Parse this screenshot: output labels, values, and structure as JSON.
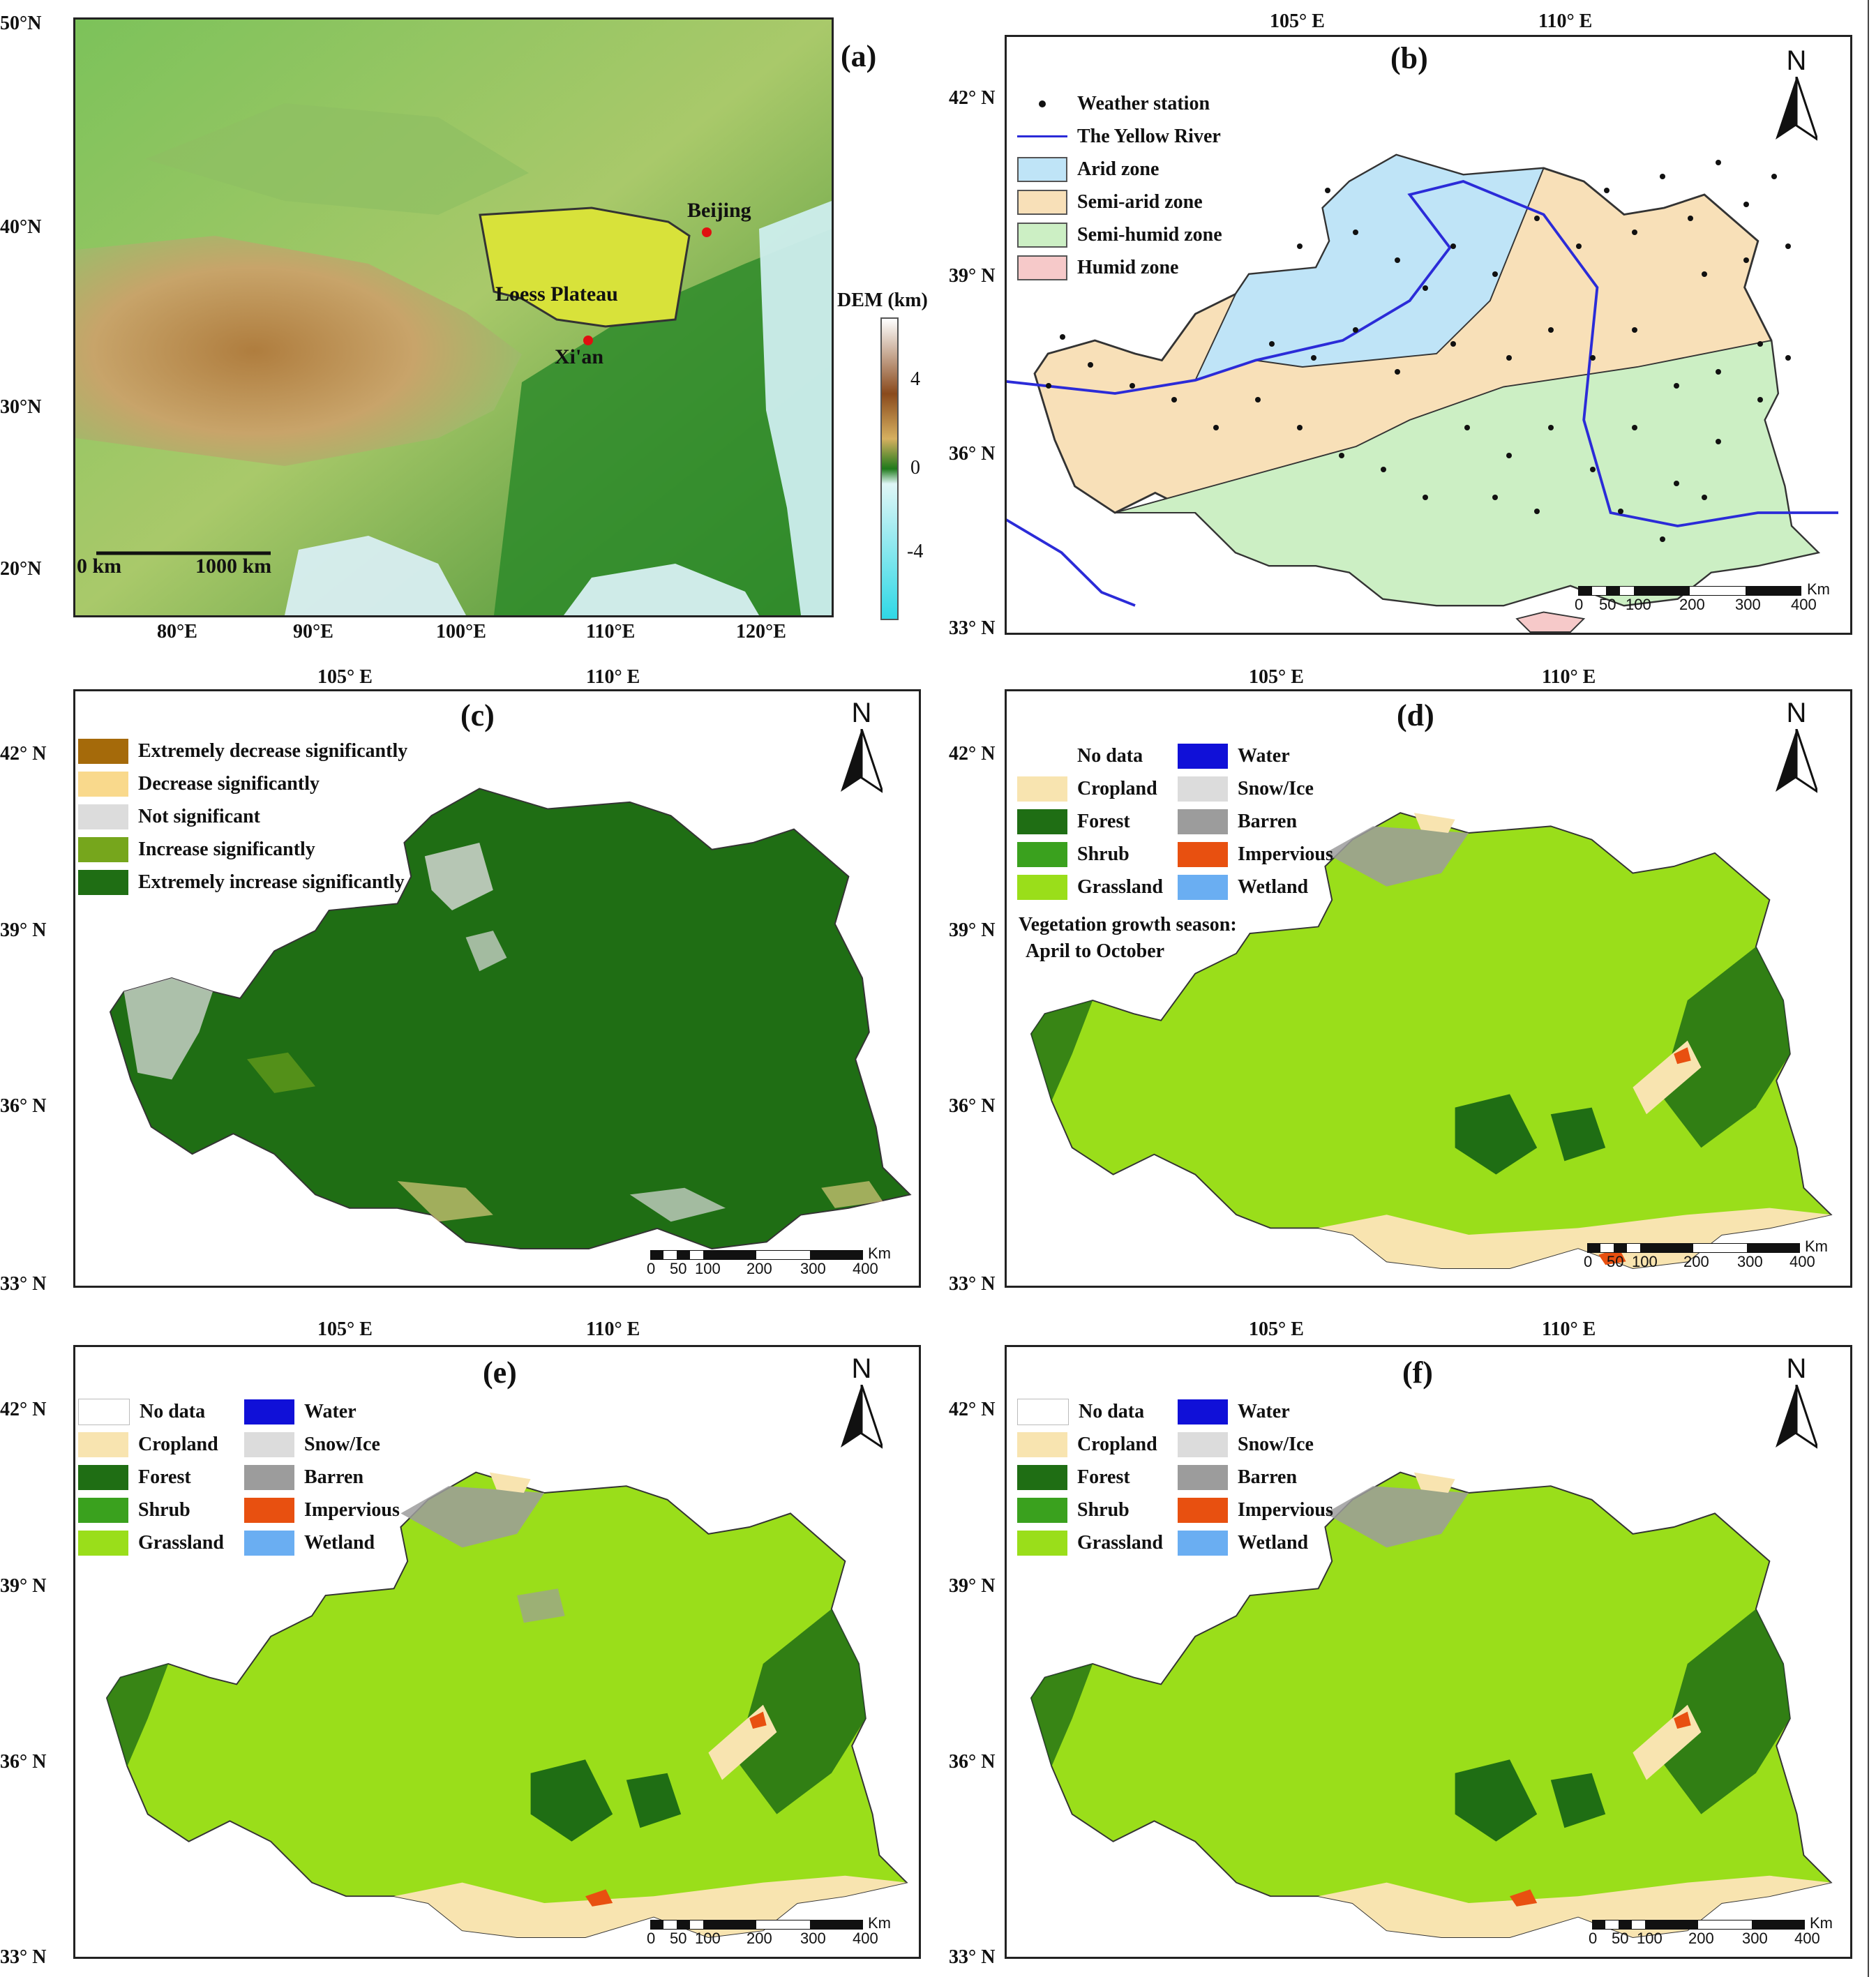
{
  "panel_a": {
    "label": "(a)",
    "lat_ticks": [
      "50°N",
      "40°N",
      "30°N",
      "20°N"
    ],
    "lon_ticks": [
      "80°E",
      "90°E",
      "100°E",
      "110°E",
      "120°E"
    ],
    "place_loess": "Loess Plateau",
    "place_beijing": "Beijing",
    "place_xian": "Xi'an",
    "scale_0": "0 km",
    "scale_1000": "1000 km",
    "colorbar_title": "DEM (km)",
    "colorbar_ticks": [
      "4",
      "0",
      "-4"
    ],
    "colors": {
      "low": "#2fd8e6",
      "green": "#2f8f2a",
      "brown": "#6b3a14"
    }
  },
  "panel_b": {
    "label": "(b)",
    "lon_ticks": [
      "105° E",
      "110° E"
    ],
    "lat_ticks": [
      "42° N",
      "39° N",
      "36° N",
      "33° N"
    ],
    "north": "N",
    "legend": [
      {
        "label": "Weather station",
        "kind": "dot"
      },
      {
        "label": "The Yellow River",
        "kind": "line",
        "color": "#2b2bd8"
      },
      {
        "label": "Arid zone",
        "color": "#bfe4f7"
      },
      {
        "label": "Semi-arid zone",
        "color": "#f8e0b8"
      },
      {
        "label": "Semi-humid zone",
        "color": "#ccefc4"
      },
      {
        "label": "Humid zone",
        "color": "#f6c9c9"
      }
    ],
    "scale_unit": "Km",
    "scale_ticks": [
      "0",
      "50",
      "100",
      "200",
      "300",
      "400"
    ]
  },
  "panel_c": {
    "label": "(c)",
    "lon_ticks": [
      "105° E",
      "110° E"
    ],
    "lat_ticks": [
      "42° N",
      "39° N",
      "36° N",
      "33° N"
    ],
    "north": "N",
    "legend": [
      {
        "label": "Extremely decrease significantly",
        "color": "#a56a0a"
      },
      {
        "label": "Decrease significantly",
        "color": "#f9d98c"
      },
      {
        "label": "Not significant",
        "color": "#dcdcdc"
      },
      {
        "label": "Increase significantly",
        "color": "#76a61c"
      },
      {
        "label": "Extremely increase significantly",
        "color": "#1f6e14"
      }
    ],
    "scale_unit": "Km",
    "scale_ticks": [
      "0",
      "50",
      "100",
      "200",
      "300",
      "400"
    ]
  },
  "panel_d": {
    "label": "(d)",
    "lon_ticks": [
      "105° E",
      "110° E"
    ],
    "lat_ticks": [
      "42° N",
      "39° N",
      "36° N",
      "33° N"
    ],
    "north": "N",
    "legend_left": [
      {
        "label": "No data",
        "color": "#ffffff"
      },
      {
        "label": "Cropland",
        "color": "#f8e4b0"
      },
      {
        "label": "Forest",
        "color": "#1f6e14"
      },
      {
        "label": "Shrub",
        "color": "#3aa11e"
      },
      {
        "label": "Grassland",
        "color": "#9ade1a"
      }
    ],
    "legend_right": [
      {
        "label": "Water",
        "color": "#1010d8"
      },
      {
        "label": "Snow/Ice",
        "color": "#dcdcdc"
      },
      {
        "label": "Barren",
        "color": "#9c9c9c"
      },
      {
        "label": "Impervious",
        "color": "#e85010"
      },
      {
        "label": "Wetland",
        "color": "#6aaef2"
      }
    ],
    "note_line1": "Vegetation growth season:",
    "note_line2": "April to October",
    "scale_unit": "Km",
    "scale_ticks": [
      "0",
      "50",
      "100",
      "200",
      "300",
      "400"
    ]
  },
  "panel_e": {
    "label": "(e)",
    "lon_ticks": [
      "105° E",
      "110° E"
    ],
    "lat_ticks": [
      "42° N",
      "39° N",
      "36° N",
      "33° N"
    ],
    "north": "N",
    "legend_left": [
      {
        "label": "No data",
        "color": "#ffffff"
      },
      {
        "label": "Cropland",
        "color": "#f8e4b0"
      },
      {
        "label": "Forest",
        "color": "#1f6e14"
      },
      {
        "label": "Shrub",
        "color": "#3aa11e"
      },
      {
        "label": "Grassland",
        "color": "#9ade1a"
      }
    ],
    "legend_right": [
      {
        "label": "Water",
        "color": "#1010d8"
      },
      {
        "label": "Snow/Ice",
        "color": "#dcdcdc"
      },
      {
        "label": "Barren",
        "color": "#9c9c9c"
      },
      {
        "label": "Impervious",
        "color": "#e85010"
      },
      {
        "label": "Wetland",
        "color": "#6aaef2"
      }
    ],
    "scale_unit": "Km",
    "scale_ticks": [
      "0",
      "50",
      "100",
      "200",
      "300",
      "400"
    ]
  },
  "panel_f": {
    "label": "(f)",
    "lon_ticks": [
      "105° E",
      "110° E"
    ],
    "lat_ticks": [
      "42° N",
      "39° N",
      "36° N",
      "33° N"
    ],
    "north": "N",
    "legend_left": [
      {
        "label": "No data",
        "color": "#ffffff"
      },
      {
        "label": "Cropland",
        "color": "#f8e4b0"
      },
      {
        "label": "Forest",
        "color": "#1f6e14"
      },
      {
        "label": "Shrub",
        "color": "#3aa11e"
      },
      {
        "label": "Grassland",
        "color": "#9ade1a"
      }
    ],
    "legend_right": [
      {
        "label": "Water",
        "color": "#1010d8"
      },
      {
        "label": "Snow/Ice",
        "color": "#dcdcdc"
      },
      {
        "label": "Barren",
        "color": "#9c9c9c"
      },
      {
        "label": "Impervious",
        "color": "#e85010"
      },
      {
        "label": "Wetland",
        "color": "#6aaef2"
      }
    ],
    "scale_unit": "Km",
    "scale_ticks": [
      "0",
      "50",
      "100",
      "200",
      "300",
      "400"
    ]
  }
}
